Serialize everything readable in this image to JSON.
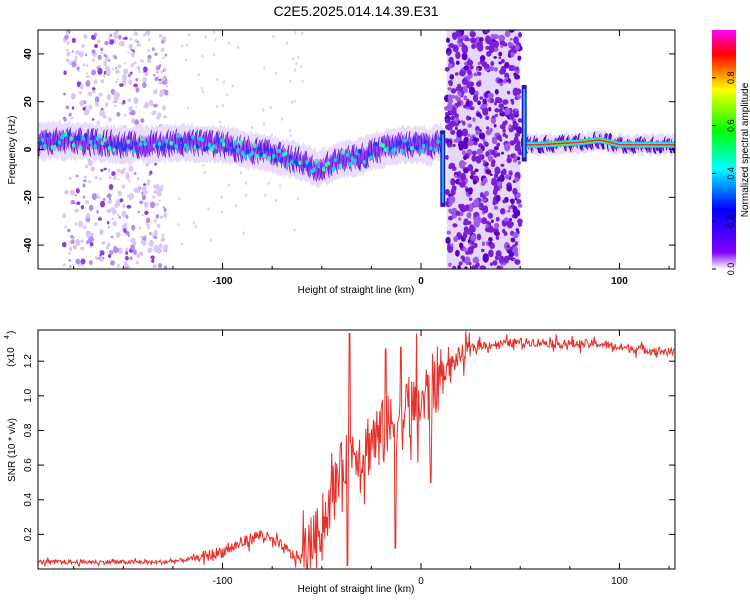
{
  "title": "C2E5.2025.014.14.39.E31",
  "chart_data": [
    {
      "type": "heatmap",
      "xlabel": "Height of straight line (km)",
      "ylabel": "Frequency (Hz)",
      "xlim": [
        -193,
        128
      ],
      "ylim": [
        -50,
        50
      ],
      "xticks": [
        -100,
        0,
        100
      ],
      "yticks": [
        -40,
        -20,
        0,
        20,
        40
      ],
      "xtick_labels": [
        "-100",
        "0",
        "100"
      ],
      "ytick_labels": [
        "-40",
        "-20",
        "0",
        "20",
        "40"
      ],
      "grid": false,
      "colorbar": {
        "label": "Normalized spectral amplitude",
        "range": [
          0,
          1
        ],
        "ticks": [
          0.0,
          0.2,
          0.4,
          0.6,
          0.8
        ],
        "tick_labels": [
          "0.0",
          "0.2",
          "0.4",
          "0.6",
          "0.8"
        ],
        "colors": [
          "#ffffff",
          "#8000ff",
          "#0000ff",
          "#00ffff",
          "#00ff00",
          "#ffff00",
          "#ff0000",
          "#ff00ff"
        ]
      },
      "ridge": {
        "x": [
          -193,
          -180,
          -165,
          -150,
          -140,
          -120,
          -100,
          -90,
          -80,
          -70,
          -60,
          -52,
          -45,
          -40,
          -35,
          -30,
          -25,
          -20,
          -15,
          -10,
          -5,
          0,
          5,
          10,
          53,
          60,
          80,
          90,
          100,
          110,
          128
        ],
        "y": [
          3,
          4,
          3,
          2,
          2,
          3,
          2,
          0,
          -1,
          -3,
          -5,
          -8,
          -6,
          -4,
          -4,
          -3,
          -1,
          0,
          1,
          2,
          2,
          2,
          1,
          4,
          2,
          2,
          3,
          4,
          2,
          2,
          2
        ]
      },
      "noise_bands": [
        [
          -180,
          -128
        ],
        [
          13,
          50
        ]
      ],
      "spikes": [
        {
          "x": 11,
          "y": [
            -24,
            8
          ]
        },
        {
          "x": 52,
          "y": [
            -5,
            27
          ]
        }
      ]
    },
    {
      "type": "line",
      "xlabel": "Height of straight line (km)",
      "ylabel": "SNR (10 * v/v)",
      "y_multiplier_label": "(x10",
      "y_multiplier_exp": "4",
      "xlim": [
        -193,
        128
      ],
      "ylim": [
        0,
        1.38
      ],
      "xticks": [
        -100,
        0,
        100
      ],
      "yticks": [
        0.2,
        0.4,
        0.6,
        0.8,
        1.0,
        1.2
      ],
      "xtick_labels": [
        "-100",
        "0",
        "100"
      ],
      "ytick_labels": [
        "0.2",
        "0.4",
        "0.6",
        "0.8",
        "1.0",
        "1.2"
      ],
      "grid": false,
      "series": [
        {
          "color": "#e8302a",
          "x": [
            -193,
            -170,
            -150,
            -130,
            -120,
            -110,
            -100,
            -90,
            -85,
            -80,
            -75,
            -70,
            -65,
            -60,
            -55,
            -50,
            -45,
            -42,
            -38,
            -35,
            -30,
            -25,
            -20,
            -15,
            -10,
            -5,
            0,
            5,
            10,
            15,
            20,
            25,
            30,
            40,
            50,
            60,
            70,
            80,
            90,
            95,
            100,
            110,
            120,
            128
          ],
          "y": [
            0.04,
            0.04,
            0.04,
            0.04,
            0.05,
            0.07,
            0.1,
            0.15,
            0.18,
            0.2,
            0.16,
            0.13,
            0.08,
            0.06,
            0.15,
            0.25,
            0.4,
            0.55,
            0.62,
            0.7,
            0.66,
            0.75,
            0.78,
            0.82,
            0.88,
            0.92,
            0.95,
            1.03,
            1.12,
            1.18,
            1.23,
            1.27,
            1.29,
            1.3,
            1.31,
            1.31,
            1.3,
            1.3,
            1.3,
            1.29,
            1.28,
            1.27,
            1.26,
            1.25
          ]
        }
      ],
      "spikes": [
        {
          "x": -36,
          "y": 1.36
        },
        {
          "x": -37,
          "y": 0.02
        },
        {
          "x": -18,
          "y": 1.27
        },
        {
          "x": -13,
          "y": 0.12
        },
        {
          "x": -10,
          "y": 1.28
        },
        {
          "x": 5,
          "y": 0.5
        }
      ]
    }
  ]
}
